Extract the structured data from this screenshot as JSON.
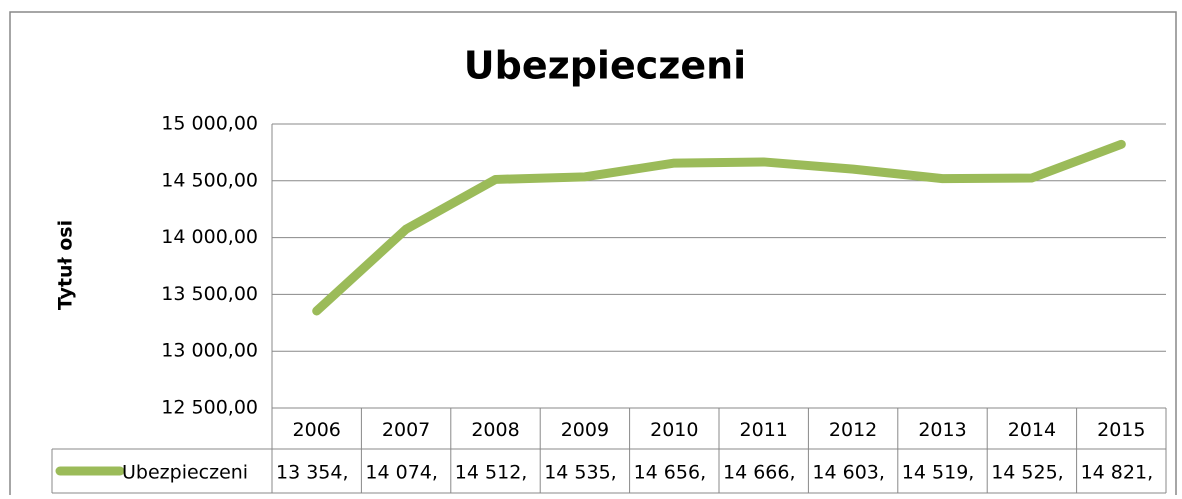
{
  "chart_data": {
    "type": "line",
    "title": "Ubezpieczeni",
    "y_axis_label": "Tytuł osi",
    "categories": [
      "2006",
      "2007",
      "2008",
      "2009",
      "2010",
      "2011",
      "2012",
      "2013",
      "2014",
      "2015"
    ],
    "series": [
      {
        "name": "Ubezpieczeni",
        "color": "#9bbb59",
        "values": [
          13354,
          14074,
          14512,
          14535,
          14656,
          14666,
          14603,
          14519,
          14525,
          14821
        ],
        "value_labels": [
          "13 354,",
          "14 074,",
          "14 512,",
          "14 535,",
          "14 656,",
          "14 666,",
          "14 603,",
          "14 519,",
          "14 525,",
          "14 821,"
        ]
      }
    ],
    "ylim": [
      12500,
      15000
    ],
    "yticks": [
      {
        "value": 12500,
        "label": "12 500,00"
      },
      {
        "value": 13000,
        "label": "13 000,00"
      },
      {
        "value": 13500,
        "label": "13 500,00"
      },
      {
        "value": 14000,
        "label": "14 000,00"
      },
      {
        "value": 14500,
        "label": "14 500,00"
      },
      {
        "value": 15000,
        "label": "15 000,00"
      }
    ],
    "grid": true,
    "data_table": true
  }
}
